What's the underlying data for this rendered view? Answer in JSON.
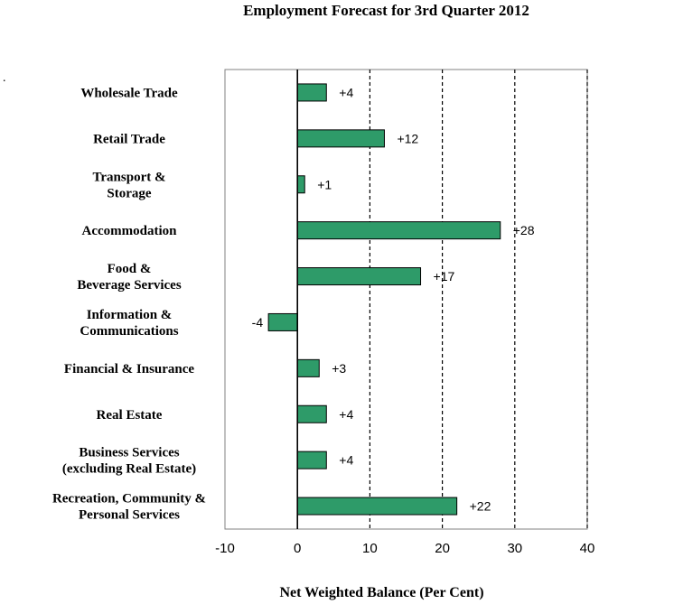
{
  "chart_data": {
    "type": "bar",
    "orientation": "horizontal",
    "title": "Employment Forecast for 3rd Quarter 2012",
    "xlabel": "Net Weighted Balance (Per Cent)",
    "ylabel": "",
    "categories": [
      [
        "Wholesale Trade"
      ],
      [
        "Retail Trade"
      ],
      [
        "Transport &",
        "Storage"
      ],
      [
        "Accommodation"
      ],
      [
        "Food &",
        "Beverage Services"
      ],
      [
        "Information &",
        "Communications"
      ],
      [
        "Financial & Insurance"
      ],
      [
        "Real Estate"
      ],
      [
        "Business Services",
        "(excluding Real Estate)"
      ],
      [
        "Recreation, Community &",
        "Personal Services"
      ]
    ],
    "values": [
      4,
      12,
      1,
      28,
      17,
      -4,
      3,
      4,
      4,
      22
    ],
    "data_labels": [
      "+4",
      "+12",
      "+1",
      "+28",
      "+17",
      "-4",
      "+3",
      "+4",
      "+4",
      "+22"
    ],
    "xlim": [
      -10,
      40
    ],
    "xticks": [
      "-10",
      "0",
      "10",
      "20",
      "30",
      "40"
    ],
    "tick_values": [
      -10,
      0,
      10,
      20,
      30,
      40
    ],
    "gridlines": [
      10,
      20,
      30,
      40
    ],
    "grid": "vertical dashed",
    "legend": "none",
    "colors": {
      "bar_fill": "#2e9b69",
      "bar_stroke": "#000000"
    }
  }
}
